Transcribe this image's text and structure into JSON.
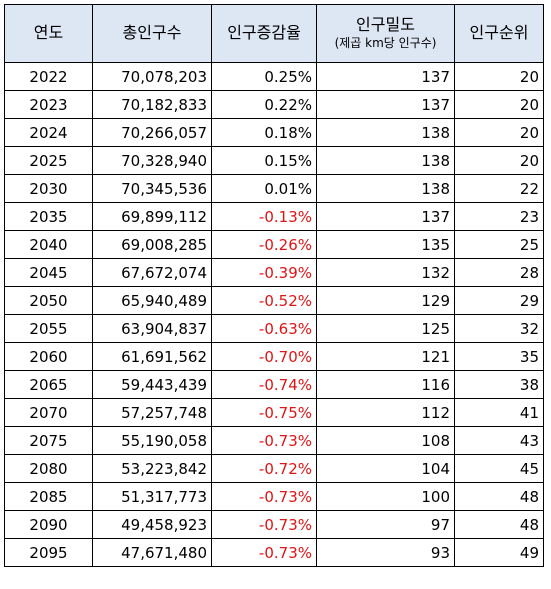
{
  "headers": {
    "year": "연도",
    "total": "총인구수",
    "rate": "인구증감율",
    "density": "인구밀도",
    "density_sub": "(제곱 km당 인구수)",
    "rank": "인구순위"
  },
  "rows": [
    {
      "year": "2022",
      "total": "70,078,203",
      "rate": "0.25%",
      "density": "137",
      "rank": "20"
    },
    {
      "year": "2023",
      "total": "70,182,833",
      "rate": "0.22%",
      "density": "137",
      "rank": "20"
    },
    {
      "year": "2024",
      "total": "70,266,057",
      "rate": "0.18%",
      "density": "138",
      "rank": "20"
    },
    {
      "year": "2025",
      "total": "70,328,940",
      "rate": "0.15%",
      "density": "138",
      "rank": "20"
    },
    {
      "year": "2030",
      "total": "70,345,536",
      "rate": "0.01%",
      "density": "138",
      "rank": "22"
    },
    {
      "year": "2035",
      "total": "69,899,112",
      "rate": "-0.13%",
      "density": "137",
      "rank": "23"
    },
    {
      "year": "2040",
      "total": "69,008,285",
      "rate": "-0.26%",
      "density": "135",
      "rank": "25"
    },
    {
      "year": "2045",
      "total": "67,672,074",
      "rate": "-0.39%",
      "density": "132",
      "rank": "28"
    },
    {
      "year": "2050",
      "total": "65,940,489",
      "rate": "-0.52%",
      "density": "129",
      "rank": "29"
    },
    {
      "year": "2055",
      "total": "63,904,837",
      "rate": "-0.63%",
      "density": "125",
      "rank": "32"
    },
    {
      "year": "2060",
      "total": "61,691,562",
      "rate": "-0.70%",
      "density": "121",
      "rank": "35"
    },
    {
      "year": "2065",
      "total": "59,443,439",
      "rate": "-0.74%",
      "density": "116",
      "rank": "38"
    },
    {
      "year": "2070",
      "total": "57,257,748",
      "rate": "-0.75%",
      "density": "112",
      "rank": "41"
    },
    {
      "year": "2075",
      "total": "55,190,058",
      "rate": "-0.73%",
      "density": "108",
      "rank": "43"
    },
    {
      "year": "2080",
      "total": "53,223,842",
      "rate": "-0.72%",
      "density": "104",
      "rank": "45"
    },
    {
      "year": "2085",
      "total": "51,317,773",
      "rate": "-0.73%",
      "density": "100",
      "rank": "48"
    },
    {
      "year": "2090",
      "total": "49,458,923",
      "rate": "-0.73%",
      "density": "97",
      "rank": "48"
    },
    {
      "year": "2095",
      "total": "47,671,480",
      "rate": "-0.73%",
      "density": "93",
      "rank": "49"
    }
  ],
  "colors": {
    "header_bg": "#dde6f3",
    "negative_text": "#e01414",
    "border": "#000000"
  }
}
